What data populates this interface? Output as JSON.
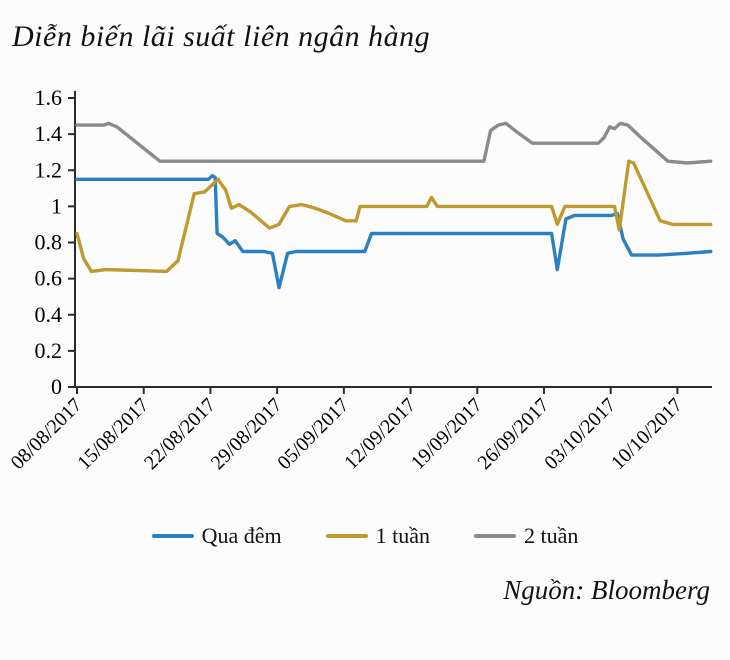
{
  "title": "Diễn biến lãi suất liên ngân hàng",
  "source": "Nguồn: Bloomberg",
  "chart_data": {
    "type": "line",
    "title": "Diễn biến lãi suất liên ngân hàng",
    "xlabel": "",
    "ylabel": "",
    "grid": false,
    "legend_position": "bottom",
    "y_axis": {
      "min": 0,
      "max": 1.6,
      "tick_step": 0.2,
      "tick_labels": [
        "0",
        "0.2",
        "0.4",
        "0.6",
        "0.8",
        "1",
        "1.2",
        "1.4",
        "1.6"
      ]
    },
    "x_axis": {
      "unit": "days",
      "range_days": [
        0,
        66.5
      ],
      "tick_interval_days": 7,
      "tick_labels": [
        "08/08/2017",
        "15/08/2017",
        "22/08/2017",
        "29/08/2017",
        "05/09/2017",
        "12/09/2017",
        "19/09/2017",
        "26/09/2017",
        "03/10/2017",
        "10/10/2017"
      ]
    },
    "axis_color": "#2b2b2b",
    "series": [
      {
        "id": "qua-dem",
        "name": "Qua đêm",
        "color": "#2B7FC2",
        "points": [
          [
            0,
            1.15
          ],
          [
            13.8,
            1.15
          ],
          [
            14.2,
            1.17
          ],
          [
            14.5,
            1.16
          ],
          [
            14.7,
            0.85
          ],
          [
            15.3,
            0.83
          ],
          [
            16.0,
            0.79
          ],
          [
            16.6,
            0.81
          ],
          [
            17.4,
            0.75
          ],
          [
            19.6,
            0.75
          ],
          [
            20.5,
            0.74
          ],
          [
            21.2,
            0.55
          ],
          [
            22.1,
            0.74
          ],
          [
            23.0,
            0.75
          ],
          [
            30.2,
            0.75
          ],
          [
            30.9,
            0.85
          ],
          [
            49.8,
            0.85
          ],
          [
            50.4,
            0.65
          ],
          [
            51.3,
            0.93
          ],
          [
            52.2,
            0.95
          ],
          [
            56.1,
            0.95
          ],
          [
            56.7,
            0.96
          ],
          [
            57.3,
            0.82
          ],
          [
            58.2,
            0.73
          ],
          [
            61.0,
            0.73
          ],
          [
            64.0,
            0.74
          ],
          [
            66.5,
            0.75
          ]
        ]
      },
      {
        "id": "1-tuan",
        "name": "1 tuần",
        "color": "#BE9A2F",
        "points": [
          [
            0,
            0.85
          ],
          [
            0.7,
            0.71
          ],
          [
            1.5,
            0.64
          ],
          [
            3.0,
            0.65
          ],
          [
            9.4,
            0.64
          ],
          [
            10.6,
            0.7
          ],
          [
            12.3,
            1.07
          ],
          [
            13.4,
            1.08
          ],
          [
            14.8,
            1.15
          ],
          [
            15.6,
            1.09
          ],
          [
            16.2,
            0.99
          ],
          [
            17.0,
            1.01
          ],
          [
            18.2,
            0.97
          ],
          [
            20.2,
            0.88
          ],
          [
            21.2,
            0.9
          ],
          [
            22.3,
            1.0
          ],
          [
            23.6,
            1.01
          ],
          [
            25.0,
            0.99
          ],
          [
            26.5,
            0.96
          ],
          [
            28.2,
            0.92
          ],
          [
            29.3,
            0.92
          ],
          [
            29.7,
            1.0
          ],
          [
            36.7,
            1.0
          ],
          [
            37.2,
            1.05
          ],
          [
            37.8,
            1.0
          ],
          [
            49.8,
            1.0
          ],
          [
            50.4,
            0.9
          ],
          [
            51.2,
            1.0
          ],
          [
            56.4,
            1.0
          ],
          [
            56.9,
            0.87
          ],
          [
            57.9,
            1.25
          ],
          [
            58.4,
            1.24
          ],
          [
            61.2,
            0.92
          ],
          [
            62.5,
            0.9
          ],
          [
            66.5,
            0.9
          ]
        ]
      },
      {
        "id": "2-tuan",
        "name": "2 tuần",
        "color": "#8B8B8B",
        "points": [
          [
            0,
            1.45
          ],
          [
            2.8,
            1.45
          ],
          [
            3.3,
            1.46
          ],
          [
            4.2,
            1.44
          ],
          [
            8.7,
            1.25
          ],
          [
            42.7,
            1.25
          ],
          [
            43.4,
            1.42
          ],
          [
            44.2,
            1.45
          ],
          [
            45.0,
            1.46
          ],
          [
            46.2,
            1.41
          ],
          [
            47.8,
            1.35
          ],
          [
            54.7,
            1.35
          ],
          [
            55.3,
            1.38
          ],
          [
            55.9,
            1.44
          ],
          [
            56.4,
            1.43
          ],
          [
            57.0,
            1.46
          ],
          [
            57.8,
            1.45
          ],
          [
            59.2,
            1.38
          ],
          [
            62.0,
            1.25
          ],
          [
            64.0,
            1.24
          ],
          [
            66.5,
            1.25
          ]
        ]
      }
    ]
  }
}
